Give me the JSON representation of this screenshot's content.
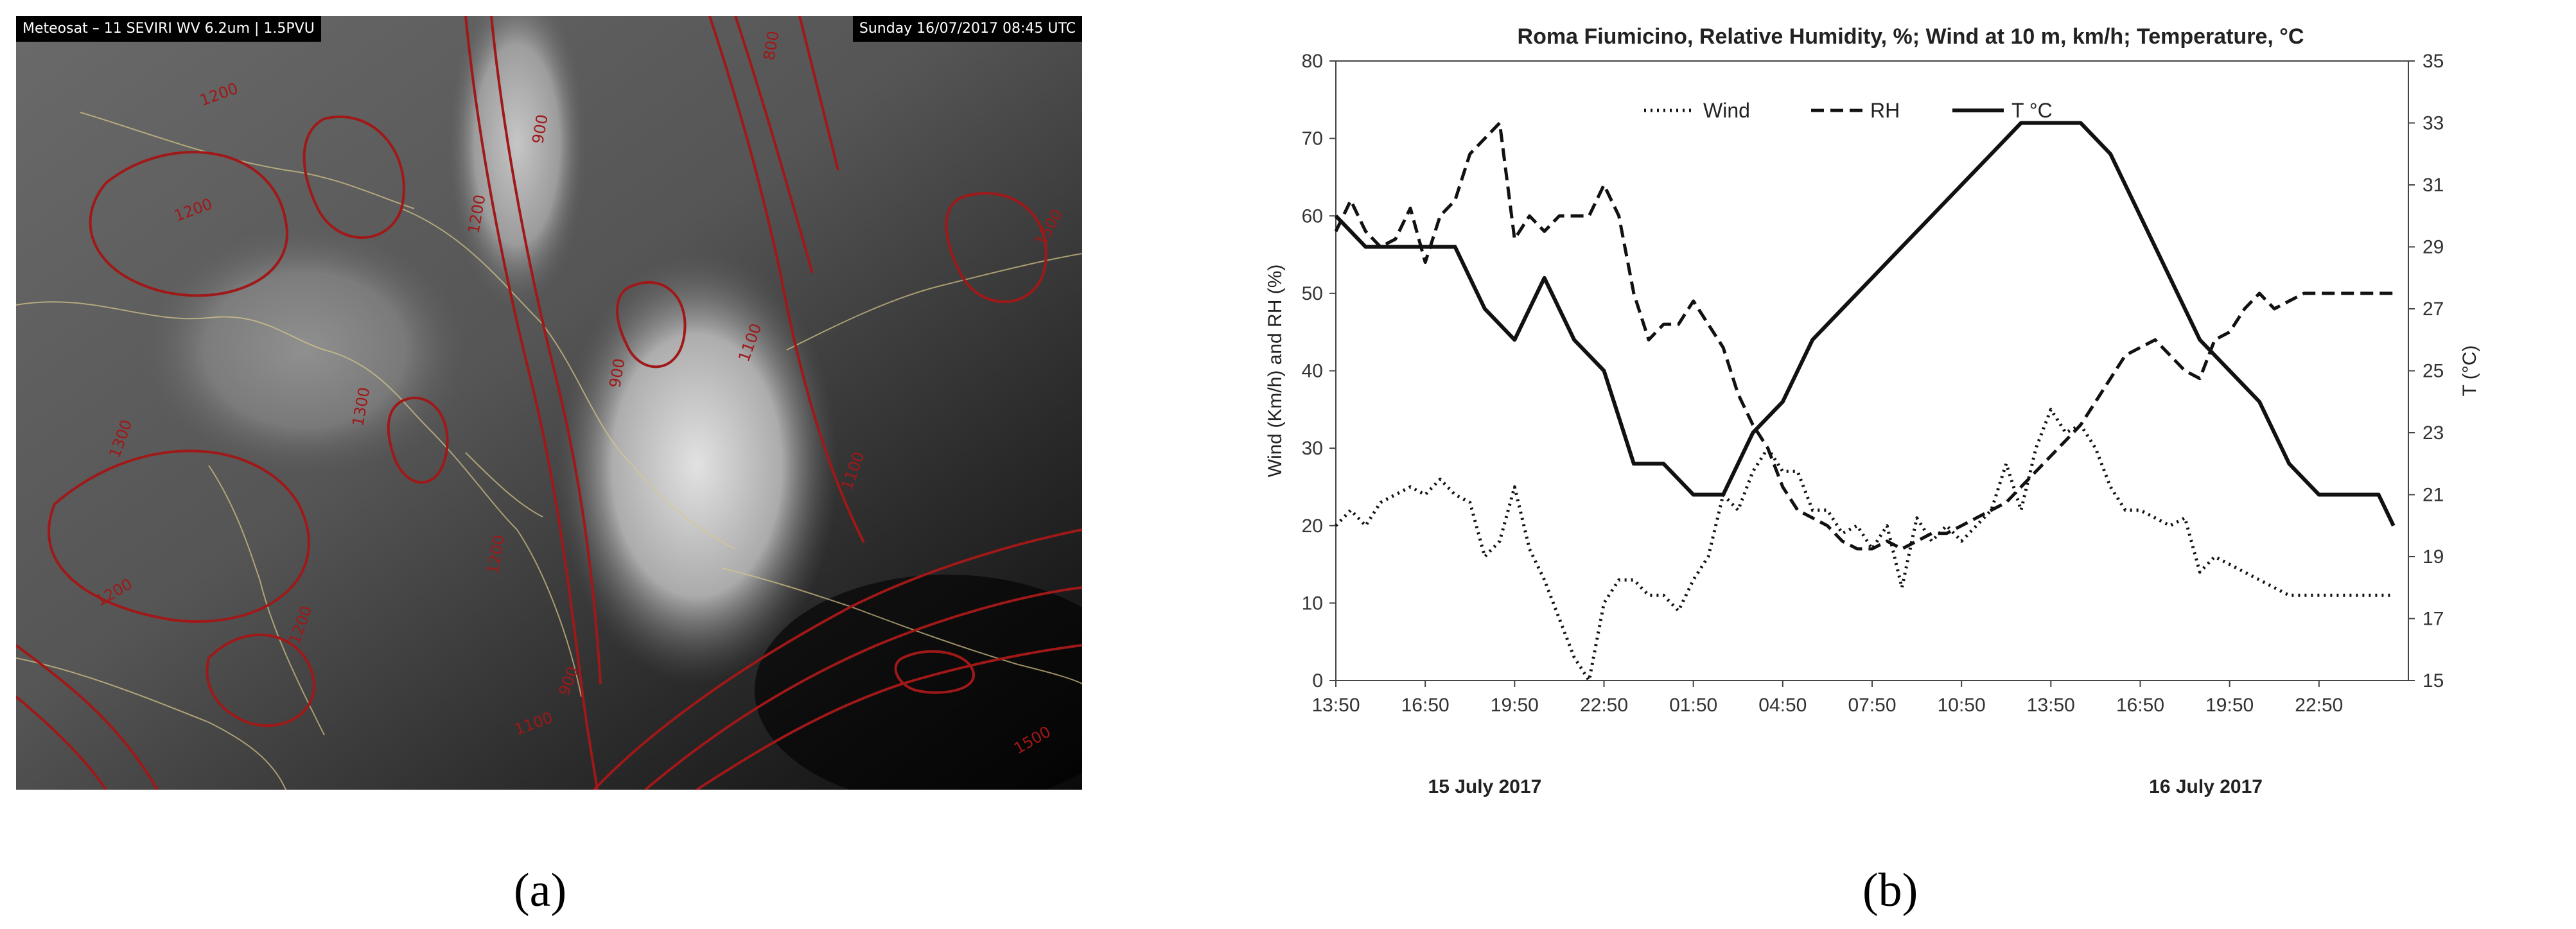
{
  "panel_a": {
    "title": "Meteosat – 11 SEVIRI WV 6.2um | 1.5PVU",
    "timestamp": "Sunday 16/07/2017 08:45 UTC",
    "contour_labels": [
      "1200",
      "1200",
      "1200",
      "1300",
      "1300",
      "1200",
      "1100",
      "900",
      "900",
      "800",
      "1100",
      "1200",
      "1500",
      "900",
      "1100",
      "1200",
      "1500"
    ],
    "contour_color": "#a01818"
  },
  "captions": {
    "a": "(a)",
    "b": "(b)"
  },
  "chart_data": {
    "type": "line",
    "title": "Roma Fiumicino, Relative Humidity, %; Wind at 10 m, km/h; Temperature, °C",
    "ylabel": "Wind (Km/h) and RH (%)",
    "y2label": "T (°C)",
    "ylim": [
      0,
      80
    ],
    "y2lim": [
      15,
      35
    ],
    "yticks": [
      0,
      10,
      20,
      30,
      40,
      50,
      60,
      70,
      80
    ],
    "y2ticks": [
      15,
      17,
      19,
      21,
      23,
      25,
      27,
      29,
      31,
      33,
      35
    ],
    "xlim": [
      0,
      36
    ],
    "xticks": [
      0,
      3,
      6,
      9,
      12,
      15,
      18,
      21,
      24,
      27,
      30,
      33
    ],
    "xticklabels": [
      "13:50",
      "16:50",
      "19:50",
      "22:50",
      "01:50",
      "04:50",
      "07:50",
      "10:50",
      "13:50",
      "16:50",
      "19:50",
      "22:50"
    ],
    "date_labels": [
      {
        "at": 5,
        "text": "15 July 2017"
      },
      {
        "at": 29.2,
        "text": "16 July 2017"
      }
    ],
    "legend": {
      "placement": "top-center"
    },
    "series": [
      {
        "name": "Wind",
        "style": "dotted",
        "axis": "left",
        "x": [
          0,
          0.5,
          1,
          1.5,
          2,
          2.5,
          3,
          3.5,
          4,
          4.5,
          5,
          5.5,
          6,
          6.5,
          7,
          7.5,
          8,
          8.5,
          9,
          9.5,
          10,
          10.5,
          11,
          11.5,
          12,
          12.5,
          13,
          13.5,
          14,
          14.5,
          15,
          15.5,
          16,
          16.5,
          17,
          17.5,
          18,
          18.5,
          19,
          19.5,
          20,
          20.5,
          21,
          21.5,
          22,
          22.5,
          23,
          23.5,
          24,
          24.5,
          25,
          25.5,
          26,
          26.5,
          27,
          27.5,
          28,
          28.5,
          29,
          29.5,
          30,
          30.5,
          31,
          31.5,
          32,
          32.5,
          33,
          33.5,
          34,
          34.5,
          35,
          35.5
        ],
        "values": [
          20,
          22,
          20,
          23,
          24,
          25,
          24,
          26,
          24,
          23,
          16,
          18,
          25,
          17,
          13,
          8,
          3,
          0,
          10,
          13,
          13,
          11,
          11,
          9,
          13,
          16,
          24,
          22,
          27,
          30,
          27,
          27,
          22,
          22,
          19,
          20,
          17,
          20,
          12,
          21,
          18,
          20,
          18,
          20,
          22,
          28,
          22,
          30,
          35,
          32,
          33,
          30,
          25,
          22,
          22,
          21,
          20,
          21,
          14,
          16,
          15,
          14,
          13,
          12,
          11,
          11,
          11,
          11,
          11,
          11,
          11,
          11
        ]
      },
      {
        "name": "RH",
        "style": "dashed",
        "axis": "left",
        "x": [
          0,
          0.5,
          1,
          1.5,
          2,
          2.5,
          3,
          3.5,
          4,
          4.5,
          5,
          5.5,
          6,
          6.5,
          7,
          7.5,
          8,
          8.5,
          9,
          9.5,
          10,
          10.5,
          11,
          11.5,
          12,
          12.5,
          13,
          13.5,
          14,
          14.5,
          15,
          15.5,
          16,
          16.5,
          17,
          17.5,
          18,
          18.5,
          19,
          19.5,
          20,
          20.5,
          21,
          21.5,
          22,
          22.5,
          23,
          23.5,
          24,
          24.5,
          25,
          25.5,
          26,
          26.5,
          27,
          27.5,
          28,
          28.5,
          29,
          29.5,
          30,
          30.5,
          31,
          31.5,
          32,
          32.5,
          33,
          33.5,
          34,
          34.5,
          35,
          35.5
        ],
        "values": [
          58,
          62,
          58,
          56,
          57,
          61,
          54,
          60,
          62,
          68,
          70,
          72,
          57,
          60,
          58,
          60,
          60,
          60,
          64,
          60,
          50,
          44,
          46,
          46,
          49,
          46,
          43,
          37,
          33,
          30,
          25,
          22,
          21,
          20,
          18,
          17,
          17,
          18,
          17,
          18,
          19,
          19,
          20,
          21,
          22,
          23,
          25,
          27,
          29,
          31,
          33,
          36,
          39,
          42,
          43,
          44,
          42,
          40,
          39,
          44,
          45,
          48,
          50,
          48,
          49,
          50,
          50,
          50,
          50,
          50,
          50,
          50
        ]
      },
      {
        "name": "T °C",
        "style": "solid",
        "axis": "right",
        "x": [
          0,
          1,
          2,
          3,
          4,
          5,
          6,
          7,
          8,
          9,
          10,
          11,
          12,
          13,
          14,
          15,
          16,
          17,
          18,
          19,
          20,
          21,
          22,
          23,
          24,
          25,
          26,
          27,
          28,
          29,
          30,
          31,
          32,
          33,
          34,
          35,
          35.5
        ],
        "values": [
          30,
          29,
          29,
          29,
          29,
          27,
          26,
          28,
          26,
          25,
          22,
          22,
          21,
          21,
          23,
          24,
          26,
          27,
          28,
          29,
          30,
          31,
          32,
          33,
          33,
          33,
          32,
          30,
          28,
          26,
          25,
          24,
          22,
          21,
          21,
          21,
          20
        ]
      }
    ]
  }
}
